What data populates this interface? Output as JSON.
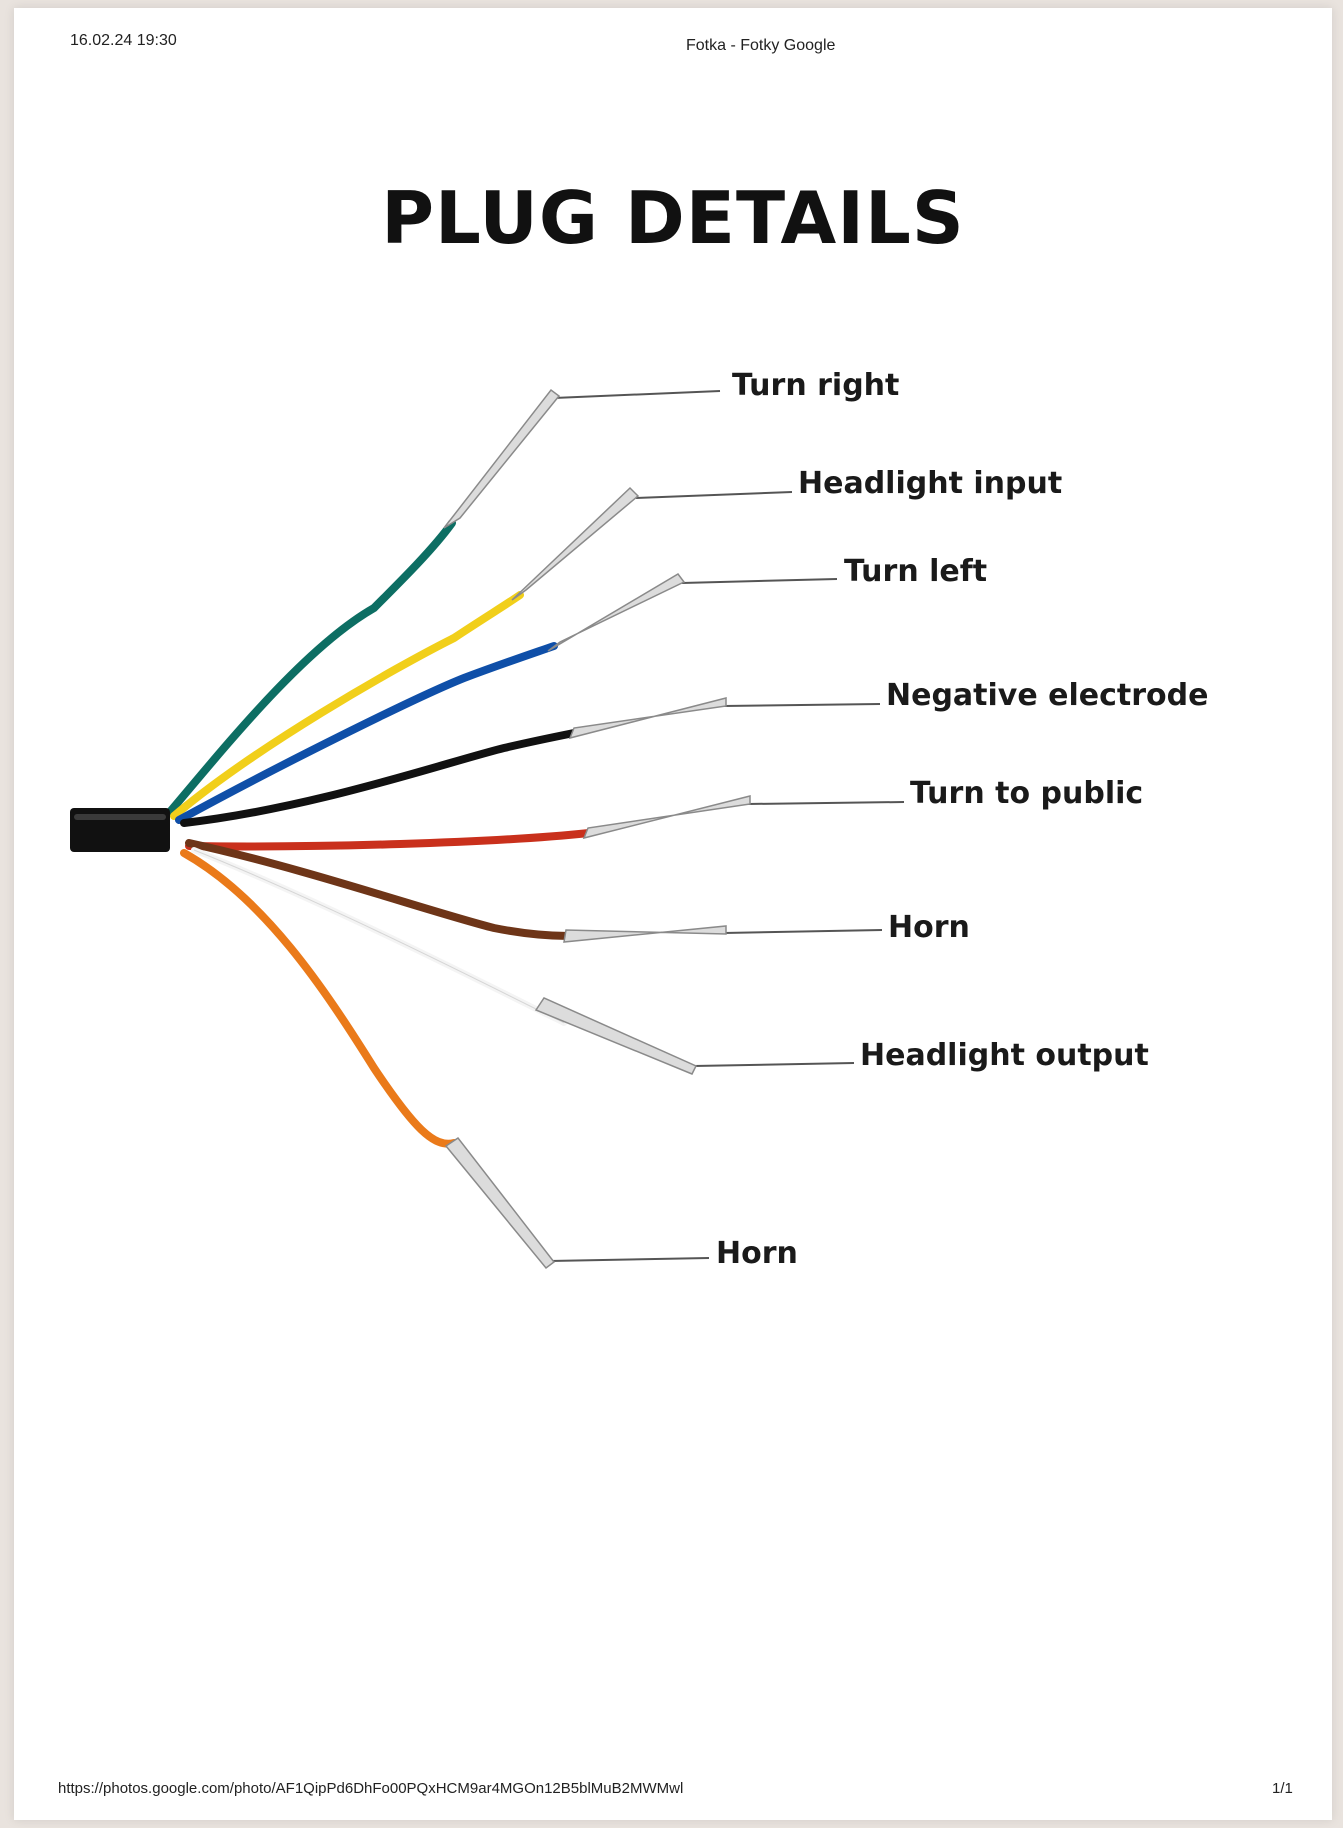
{
  "header": {
    "date": "16.02.24 19:30",
    "title": "Fotka - Fotky Google"
  },
  "title": "PLUG DETAILS",
  "wires": [
    {
      "label": "Turn right",
      "color": "#0d6e63"
    },
    {
      "label": "Headlight input",
      "color": "#f1cf1a"
    },
    {
      "label": "Turn left",
      "color": "#0f4fa8"
    },
    {
      "label": "Negative electrode",
      "color": "#111111"
    },
    {
      "label": "Turn to public",
      "color": "#c9301c"
    },
    {
      "label": "Horn",
      "color": "#6e3518"
    },
    {
      "label": "Headlight output",
      "color": "#f4f4f4"
    },
    {
      "label": "Horn",
      "color": "#ea7a1a"
    }
  ],
  "footer": {
    "url": "https://photos.google.com/photo/AF1QipPd6DhFo00PQxHCM9ar4MGOn12B5blMuB2MWMwl",
    "page": "1/1"
  }
}
